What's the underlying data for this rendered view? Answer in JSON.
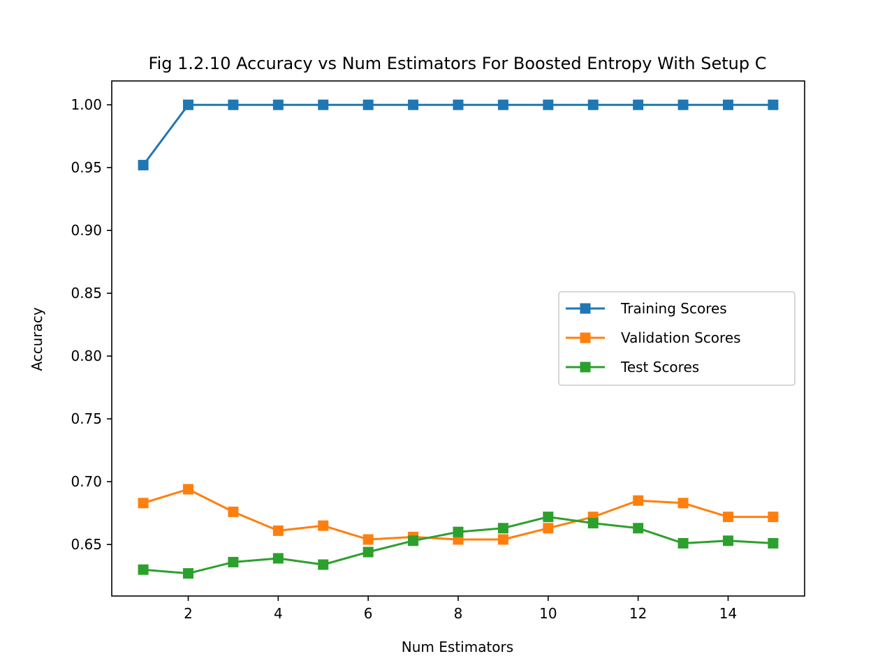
{
  "chart_data": {
    "type": "line",
    "title": "Fig 1.2.10 Accuracy vs Num Estimators For Boosted Entropy With Setup C",
    "xlabel": "Num Estimators",
    "ylabel": "Accuracy",
    "x": [
      1,
      2,
      3,
      4,
      5,
      6,
      7,
      8,
      9,
      10,
      11,
      12,
      13,
      14,
      15
    ],
    "xlim": [
      0.3,
      15.7
    ],
    "ylim": [
      0.609,
      1.019
    ],
    "xticks": [
      2,
      4,
      6,
      8,
      10,
      12,
      14
    ],
    "xtick_labels": [
      "2",
      "4",
      "6",
      "8",
      "10",
      "12",
      "14"
    ],
    "yticks": [
      0.65,
      0.7,
      0.75,
      0.8,
      0.85,
      0.9,
      0.95,
      1.0
    ],
    "ytick_labels": [
      "0.65",
      "0.70",
      "0.75",
      "0.80",
      "0.85",
      "0.90",
      "0.95",
      "1.00"
    ],
    "grid": false,
    "legend_position": "center-right",
    "marker": "square",
    "series": [
      {
        "name": "Training Scores",
        "color": "#1f77b4",
        "values": [
          0.952,
          1.0,
          1.0,
          1.0,
          1.0,
          1.0,
          1.0,
          1.0,
          1.0,
          1.0,
          1.0,
          1.0,
          1.0,
          1.0,
          1.0
        ]
      },
      {
        "name": "Validation Scores",
        "color": "#ff7f0e",
        "values": [
          0.683,
          0.694,
          0.676,
          0.661,
          0.665,
          0.654,
          0.656,
          0.654,
          0.654,
          0.663,
          0.672,
          0.685,
          0.683,
          0.672,
          0.672
        ]
      },
      {
        "name": "Test Scores",
        "color": "#2ca02c",
        "values": [
          0.63,
          0.627,
          0.636,
          0.639,
          0.634,
          0.644,
          0.653,
          0.66,
          0.663,
          0.672,
          0.667,
          0.663,
          0.651,
          0.653,
          0.651
        ]
      }
    ]
  }
}
